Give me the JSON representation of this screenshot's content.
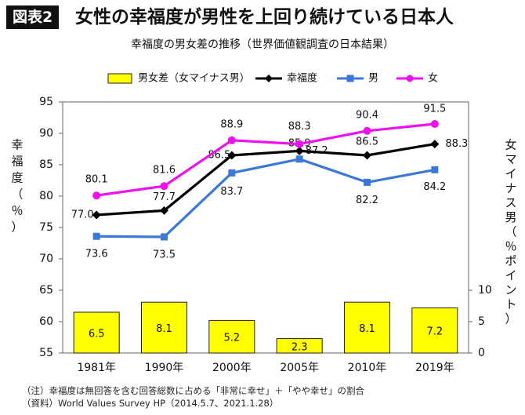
{
  "header": {
    "badge": "図表2",
    "title": "女性の幸福度が男性を上回り続けている日本人"
  },
  "chart_data": {
    "type": "bar+line",
    "title": "幸福度の男女差の推移（世界価値観調査の日本結果）",
    "categories": [
      "1981年",
      "1990年",
      "2000年",
      "2005年",
      "2010年",
      "2019年"
    ],
    "y_left": {
      "label": "幸福度（％）",
      "range": [
        55,
        95
      ],
      "ticks": [
        55,
        60,
        65,
        70,
        75,
        80,
        85,
        90,
        95
      ]
    },
    "y_right": {
      "label": "女マイナス男（％ポイント）",
      "range": [
        0,
        40
      ],
      "ticks": [
        0,
        5,
        10
      ]
    },
    "grid": false,
    "legend_position": "top",
    "series": [
      {
        "name": "女マイナス男",
        "kind": "bar",
        "axis": "right",
        "color": "#ffff00",
        "values": [
          6.5,
          8.1,
          5.2,
          2.3,
          8.1,
          7.2
        ],
        "labels": [
          "6.5",
          "8.1",
          "5.2",
          "2.3",
          "8.1",
          "7.2"
        ]
      },
      {
        "name": "幸福度",
        "kind": "line",
        "axis": "left",
        "color": "#000000",
        "marker": "diamond",
        "values": [
          77.0,
          77.7,
          86.5,
          87.2,
          86.5,
          88.3
        ],
        "labels": [
          "77.0",
          "77.7",
          "86.5",
          "87.2",
          "86.5",
          "88.3"
        ]
      },
      {
        "name": "男",
        "kind": "line",
        "axis": "left",
        "color": "#3b78d8",
        "marker": "square",
        "values": [
          73.6,
          73.5,
          83.7,
          85.9,
          82.2,
          84.2
        ],
        "labels": [
          "73.6",
          "73.5",
          "83.7",
          "85.9",
          "82.2",
          "84.2"
        ]
      },
      {
        "name": "女",
        "kind": "line",
        "axis": "left",
        "color": "#ee11ee",
        "marker": "circle",
        "values": [
          80.1,
          81.6,
          88.9,
          88.3,
          90.4,
          91.5
        ],
        "labels": [
          "80.1",
          "81.6",
          "88.9",
          "88.3",
          "90.4",
          "91.5"
        ]
      }
    ]
  },
  "notes": {
    "line1": "（注）幸福度は無回答を含む回答総数に占める「非常に幸せ」＋「やや幸せ」の割合",
    "line2": "（資料）World Values Survey HP（2014.5.7、2021.1.28）"
  }
}
